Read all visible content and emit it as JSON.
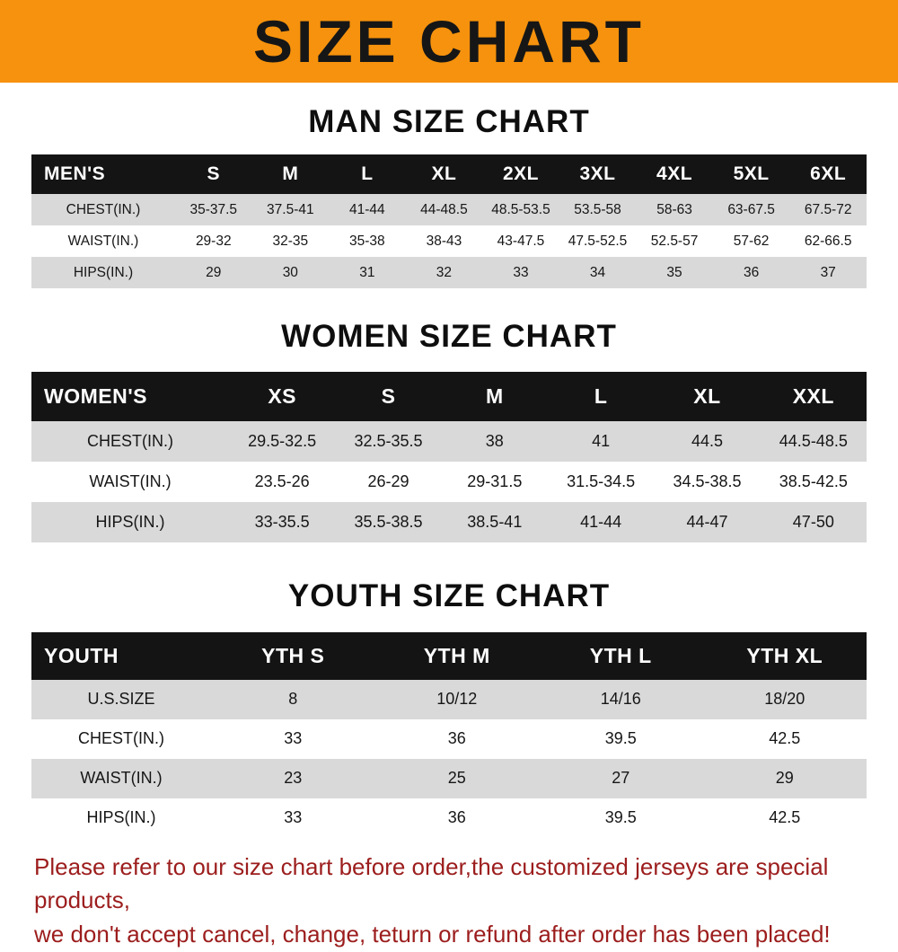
{
  "banner": {
    "title": "SIZE CHART"
  },
  "colors": {
    "banner_background": "#F6920D",
    "table_header_background": "#141414",
    "table_alt_row_background": "#D9D9D9",
    "footer_text": "#9C1D1D"
  },
  "chart_data": [
    {
      "type": "table",
      "title": "MAN SIZE CHART",
      "columns": [
        "MEN'S",
        "S",
        "M",
        "L",
        "XL",
        "2XL",
        "3XL",
        "4XL",
        "5XL",
        "6XL"
      ],
      "rows": [
        [
          "CHEST(IN.)",
          "35-37.5",
          "37.5-41",
          "41-44",
          "44-48.5",
          "48.5-53.5",
          "53.5-58",
          "58-63",
          "63-67.5",
          "67.5-72"
        ],
        [
          "WAIST(IN.)",
          "29-32",
          "32-35",
          "35-38",
          "38-43",
          "43-47.5",
          "47.5-52.5",
          "52.5-57",
          "57-62",
          "62-66.5"
        ],
        [
          "HIPS(IN.)",
          "29",
          "30",
          "31",
          "32",
          "33",
          "34",
          "35",
          "36",
          "37"
        ]
      ]
    },
    {
      "type": "table",
      "title": "WOMEN SIZE CHART",
      "columns": [
        "WOMEN'S",
        "XS",
        "S",
        "M",
        "L",
        "XL",
        "XXL"
      ],
      "rows": [
        [
          "CHEST(IN.)",
          "29.5-32.5",
          "32.5-35.5",
          "38",
          "41",
          "44.5",
          "44.5-48.5"
        ],
        [
          "WAIST(IN.)",
          "23.5-26",
          "26-29",
          "29-31.5",
          "31.5-34.5",
          "34.5-38.5",
          "38.5-42.5"
        ],
        [
          "HIPS(IN.)",
          "33-35.5",
          "35.5-38.5",
          "38.5-41",
          "41-44",
          "44-47",
          "47-50"
        ]
      ]
    },
    {
      "type": "table",
      "title": "YOUTH SIZE CHART",
      "columns": [
        "YOUTH",
        "YTH S",
        "YTH M",
        "YTH L",
        "YTH XL"
      ],
      "rows": [
        [
          "U.S.SIZE",
          "8",
          "10/12",
          "14/16",
          "18/20"
        ],
        [
          "CHEST(IN.)",
          "33",
          "36",
          "39.5",
          "42.5"
        ],
        [
          "WAIST(IN.)",
          "23",
          "25",
          "27",
          "29"
        ],
        [
          "HIPS(IN.)",
          "33",
          "36",
          "39.5",
          "42.5"
        ]
      ]
    }
  ],
  "footer": {
    "line1": "Please refer to our size chart before order,the customized jerseys are special products,",
    "line2": "we don't accept cancel, change, teturn or refund after order has been placed!"
  }
}
